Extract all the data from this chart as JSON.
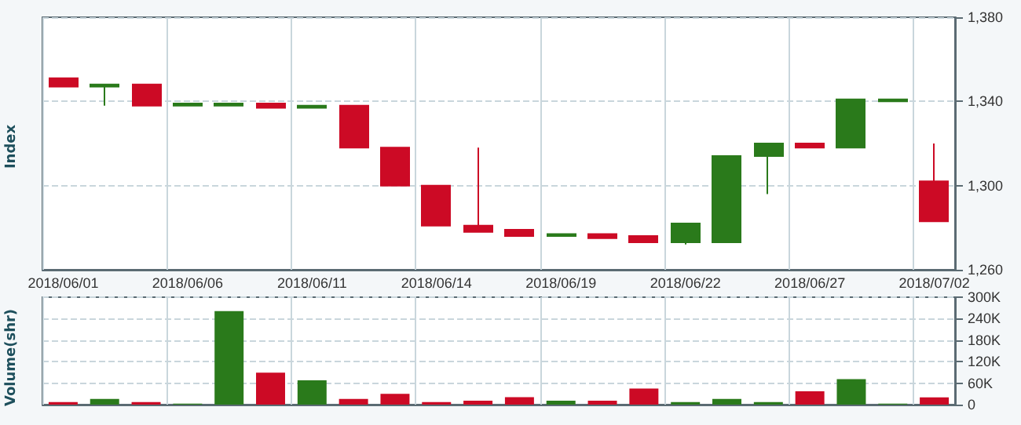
{
  "chart_data": [
    {
      "type": "candlestick",
      "ylabel": "Index",
      "categories": [
        "2018/06/01",
        null,
        null,
        "2018/06/06",
        null,
        null,
        "2018/06/11",
        null,
        null,
        "2018/06/14",
        null,
        null,
        "2018/06/19",
        null,
        null,
        "2018/06/22",
        null,
        null,
        "2018/06/27",
        null,
        null,
        "2018/07/02"
      ],
      "ohlc": [
        [
          1351,
          1351,
          1347,
          1347
        ],
        [
          1347,
          1348,
          1338,
          1348
        ],
        [
          1348,
          1348,
          1338,
          1338
        ],
        [
          1338,
          1339,
          1338,
          1339
        ],
        [
          1338,
          1339,
          1338,
          1339
        ],
        [
          1339,
          1339,
          1337,
          1337
        ],
        [
          1337,
          1338,
          1337,
          1338
        ],
        [
          1338,
          1338,
          1318,
          1318
        ],
        [
          1318,
          1318,
          1300,
          1300
        ],
        [
          1300,
          1300,
          1281,
          1281
        ],
        [
          1281,
          1318,
          1278,
          1278
        ],
        [
          1279,
          1279,
          1276,
          1276
        ],
        [
          1276,
          1277,
          1276,
          1277
        ],
        [
          1277,
          1277,
          1275,
          1275
        ],
        [
          1276,
          1276,
          1273,
          1273
        ],
        [
          1273,
          1282,
          1272,
          1282
        ],
        [
          1273,
          1314,
          1273,
          1314
        ],
        [
          1314,
          1320,
          1296,
          1320
        ],
        [
          1320,
          1320,
          1318,
          1318
        ],
        [
          1318,
          1341,
          1318,
          1341
        ],
        [
          1340,
          1341,
          1340,
          1341
        ],
        [
          1302,
          1320,
          1283,
          1283
        ]
      ],
      "colors": [
        "#cc0a25",
        "#2a7a1b",
        "#cc0a25",
        "#2a7a1b",
        "#2a7a1b",
        "#cc0a25",
        "#2a7a1b",
        "#cc0a25",
        "#cc0a25",
        "#cc0a25",
        "#cc0a25",
        "#cc0a25",
        "#2a7a1b",
        "#cc0a25",
        "#cc0a25",
        "#2a7a1b",
        "#2a7a1b",
        "#2a7a1b",
        "#cc0a25",
        "#2a7a1b",
        "#2a7a1b",
        "#cc0a25"
      ],
      "ylim": [
        1260,
        1380
      ],
      "yticks": [
        {
          "value": 1260,
          "label": "1,260"
        },
        {
          "value": 1300,
          "label": "1,300"
        },
        {
          "value": 1340,
          "label": "1,340"
        },
        {
          "value": 1380,
          "label": "1,380"
        }
      ],
      "grid": true
    },
    {
      "type": "bar",
      "ylabel": "Volume(shr)",
      "tick_labels": "y",
      "categories": [
        "2018/06/01",
        null,
        null,
        "2018/06/06",
        null,
        null,
        "2018/06/11",
        null,
        null,
        "2018/06/14",
        null,
        null,
        "2018/06/19",
        null,
        null,
        "2018/06/22",
        null,
        null,
        "2018/06/27",
        null,
        null,
        "2018/07/02"
      ],
      "values": [
        7000,
        16000,
        7000,
        3000,
        261000,
        89000,
        68000,
        16000,
        30000,
        7000,
        11000,
        21000,
        11000,
        11000,
        45000,
        7000,
        16000,
        7000,
        37000,
        71000,
        3000,
        20000
      ],
      "colors": [
        "#cc0a25",
        "#2a7a1b",
        "#cc0a25",
        "#2a7a1b",
        "#2a7a1b",
        "#cc0a25",
        "#2a7a1b",
        "#cc0a25",
        "#cc0a25",
        "#cc0a25",
        "#cc0a25",
        "#cc0a25",
        "#2a7a1b",
        "#cc0a25",
        "#cc0a25",
        "#2a7a1b",
        "#2a7a1b",
        "#2a7a1b",
        "#cc0a25",
        "#2a7a1b",
        "#2a7a1b",
        "#cc0a25"
      ],
      "ylim": [
        0,
        300000
      ],
      "yticks": [
        {
          "value": 0,
          "label": "0"
        },
        {
          "value": 60000,
          "label": "60K"
        },
        {
          "value": 120000,
          "label": "120K"
        },
        {
          "value": 180000,
          "label": "180K"
        },
        {
          "value": 240000,
          "label": "240K"
        },
        {
          "value": 300000,
          "label": "300K"
        }
      ],
      "grid": true
    }
  ]
}
